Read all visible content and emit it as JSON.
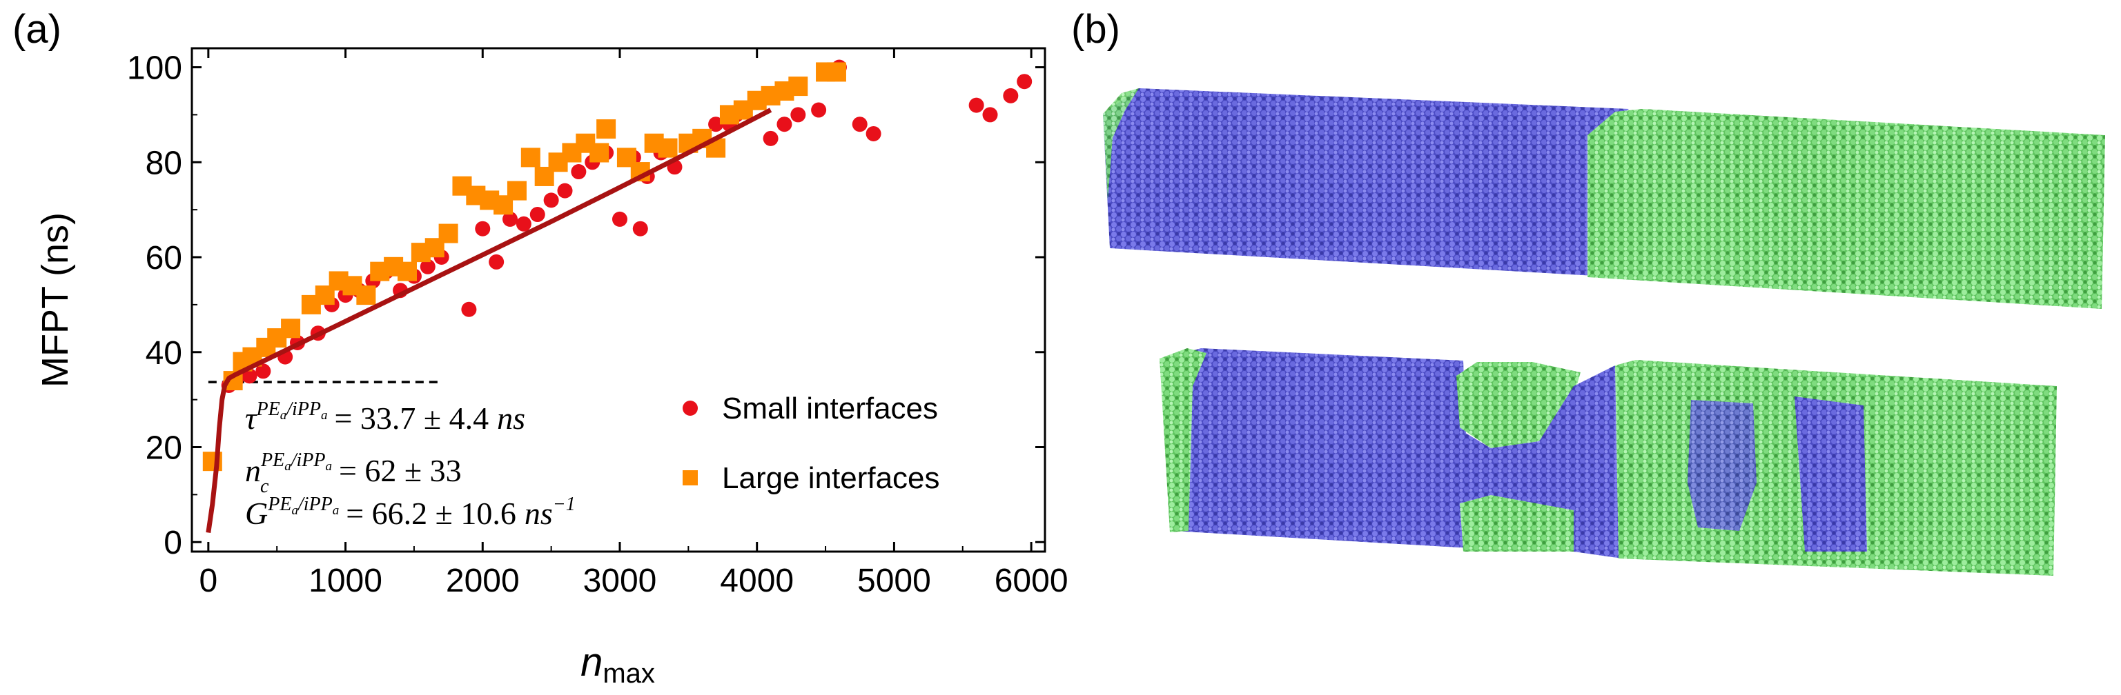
{
  "panel_a_label": "(a)",
  "panel_b_label": "(b)",
  "chart_data": {
    "type": "scatter",
    "title": "",
    "xlabel_main": "n",
    "xlabel_sub": "max",
    "ylabel": "MFPT (ns)",
    "xlim": [
      -120,
      6100
    ],
    "ylim": [
      -2,
      104
    ],
    "x_ticks": [
      0,
      1000,
      2000,
      3000,
      4000,
      5000,
      6000
    ],
    "y_ticks": [
      0,
      20,
      40,
      60,
      80,
      100
    ],
    "legend_position": "center-right",
    "series": [
      {
        "name": "Small interfaces",
        "marker": "circle",
        "color": "#e8101a",
        "points": [
          [
            150,
            33
          ],
          [
            200,
            34
          ],
          [
            300,
            35
          ],
          [
            400,
            36
          ],
          [
            560,
            39
          ],
          [
            650,
            42
          ],
          [
            800,
            44
          ],
          [
            900,
            50
          ],
          [
            1000,
            52
          ],
          [
            1100,
            53
          ],
          [
            1200,
            55
          ],
          [
            1300,
            57
          ],
          [
            1400,
            53
          ],
          [
            1500,
            56
          ],
          [
            1600,
            58
          ],
          [
            1700,
            60
          ],
          [
            1900,
            49
          ],
          [
            2000,
            66
          ],
          [
            2100,
            59
          ],
          [
            2200,
            68
          ],
          [
            2300,
            67
          ],
          [
            2400,
            69
          ],
          [
            2500,
            72
          ],
          [
            2600,
            74
          ],
          [
            2700,
            78
          ],
          [
            2800,
            80
          ],
          [
            2900,
            82
          ],
          [
            3000,
            68
          ],
          [
            3100,
            81
          ],
          [
            3150,
            66
          ],
          [
            3200,
            77
          ],
          [
            3300,
            82
          ],
          [
            3400,
            79
          ],
          [
            3500,
            84
          ],
          [
            3700,
            88
          ],
          [
            3800,
            88
          ],
          [
            3850,
            90
          ],
          [
            4000,
            93
          ],
          [
            4100,
            85
          ],
          [
            4200,
            88
          ],
          [
            4300,
            90
          ],
          [
            4450,
            91
          ],
          [
            4600,
            100
          ],
          [
            4750,
            88
          ],
          [
            4850,
            86
          ],
          [
            5600,
            92
          ],
          [
            5700,
            90
          ],
          [
            5850,
            94
          ],
          [
            5950,
            97
          ]
        ]
      },
      {
        "name": "Large interfaces",
        "marker": "square",
        "color": "#ff8c00",
        "points": [
          [
            30,
            17
          ],
          [
            180,
            34
          ],
          [
            250,
            38
          ],
          [
            320,
            39
          ],
          [
            420,
            41
          ],
          [
            500,
            43
          ],
          [
            600,
            45
          ],
          [
            750,
            50
          ],
          [
            850,
            52
          ],
          [
            950,
            55
          ],
          [
            1050,
            54
          ],
          [
            1150,
            52
          ],
          [
            1250,
            57
          ],
          [
            1350,
            58
          ],
          [
            1450,
            57
          ],
          [
            1550,
            61
          ],
          [
            1650,
            62
          ],
          [
            1750,
            65
          ],
          [
            1850,
            75
          ],
          [
            1950,
            73
          ],
          [
            2050,
            72
          ],
          [
            2150,
            71
          ],
          [
            2250,
            74
          ],
          [
            2350,
            81
          ],
          [
            2450,
            77
          ],
          [
            2550,
            80
          ],
          [
            2650,
            82
          ],
          [
            2750,
            84
          ],
          [
            2850,
            82
          ],
          [
            2900,
            87
          ],
          [
            3050,
            81
          ],
          [
            3150,
            78
          ],
          [
            3250,
            84
          ],
          [
            3350,
            83
          ],
          [
            3500,
            84
          ],
          [
            3600,
            85
          ],
          [
            3700,
            83
          ],
          [
            3800,
            90
          ],
          [
            3900,
            91
          ],
          [
            4000,
            93
          ],
          [
            4100,
            94
          ],
          [
            4200,
            95
          ],
          [
            4300,
            96
          ],
          [
            4500,
            99
          ],
          [
            4580,
            99
          ]
        ]
      }
    ],
    "fit_curve": {
      "name": "fit",
      "color": "#a81212",
      "points": [
        [
          0,
          2
        ],
        [
          30,
          8
        ],
        [
          60,
          16
        ],
        [
          80,
          24
        ],
        [
          100,
          30
        ],
        [
          120,
          33
        ],
        [
          150,
          34.5
        ],
        [
          200,
          35.3
        ],
        [
          500,
          39.5
        ],
        [
          1000,
          46.5
        ],
        [
          1500,
          53.5
        ],
        [
          2000,
          60.5
        ],
        [
          2500,
          67.5
        ],
        [
          3000,
          74.7
        ],
        [
          3500,
          82
        ],
        [
          4000,
          89.5
        ],
        [
          4100,
          91
        ]
      ]
    },
    "reference_line": {
      "y": 33.7,
      "x_start": 0,
      "x_end": 1700,
      "style": "dashed"
    },
    "annotations": [
      {
        "symbol": "τ",
        "superscript": "PE",
        "sub1": "a",
        "slash": "/iPP",
        "sub2": "a",
        "value": "= 33.7 ± 4.4",
        "unit": "ns"
      },
      {
        "symbol": "n",
        "subscript": "c",
        "superscript": "PE",
        "sub1": "a",
        "slash": "/iPP",
        "sub2": "a",
        "value": "= 62 ± 33"
      },
      {
        "symbol": "G",
        "superscript": "PE",
        "sub1": "a",
        "slash": "/iPP",
        "sub2": "a",
        "value": "= 66.2 ± 10.6",
        "unit": "ns",
        "unit_exp": "−1"
      }
    ]
  },
  "panel_b": {
    "description_colors": {
      "blue": "#5b5bd6",
      "green": "#7fdc7f"
    }
  }
}
